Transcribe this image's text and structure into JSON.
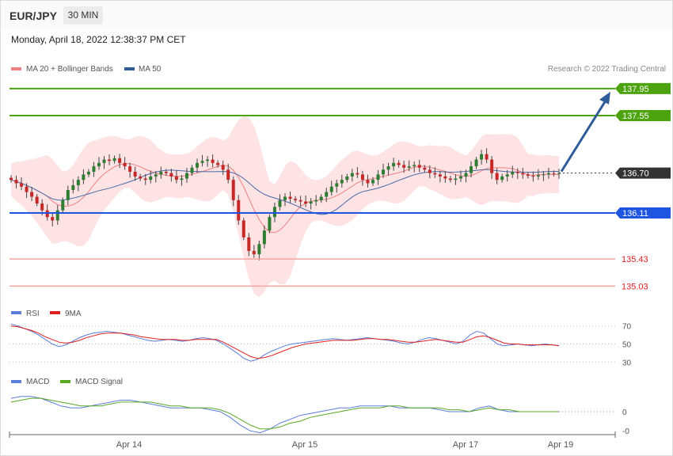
{
  "header": {
    "symbol": "EUR/JPY",
    "timeframe": "30 MIN",
    "datetime": "Monday, April 18, 2022 12:38:37 PM CET"
  },
  "legend": {
    "bb_label": "MA 20 + Bollinger Bands",
    "ma50_label": "MA 50",
    "credit": "Research © 2022 Trading Central",
    "rsi_label": "RSI",
    "rsi_ma_label": "9MA",
    "macd_label": "MACD",
    "signal_label": "MACD Signal"
  },
  "colors": {
    "resistance": "#4ca30d",
    "support": "#1e55e0",
    "price": "#333333",
    "target_red": "#f4a3a3",
    "arrow": "#2f5c98",
    "bb_fill": "#fde0e0",
    "ma20": "#f08080",
    "ma50": "#4a6aa8",
    "candle_up": "#2e7d32",
    "candle_down": "#c62828",
    "rsi": "#5b7ddb",
    "rsi_ma": "#e02020",
    "macd": "#5b7ddb",
    "signal": "#59a824"
  },
  "chart_data": [
    {
      "type": "candlestick",
      "title": "EUR/JPY",
      "x_ticks": [
        "Apr 14",
        "Apr 15",
        "Apr 17",
        "Apr 19"
      ],
      "ylim": [
        134.8,
        138.1
      ],
      "levels": [
        {
          "value": 137.95,
          "label": "137.95",
          "kind": "resistance"
        },
        {
          "value": 137.55,
          "label": "137.55",
          "kind": "resistance"
        },
        {
          "value": 136.7,
          "label": "136.70",
          "kind": "price"
        },
        {
          "value": 136.11,
          "label": "136.11",
          "kind": "support"
        },
        {
          "value": 135.43,
          "label": "135.43",
          "kind": "target"
        },
        {
          "value": 135.03,
          "label": "135.03",
          "kind": "target"
        }
      ],
      "projection": {
        "from": 136.7,
        "to": 137.95
      },
      "close": [
        136.6,
        136.55,
        136.5,
        136.42,
        136.35,
        136.25,
        136.15,
        136.05,
        136.0,
        136.15,
        136.3,
        136.45,
        136.52,
        136.6,
        136.68,
        136.72,
        136.8,
        136.85,
        136.9,
        136.88,
        136.92,
        136.85,
        136.8,
        136.72,
        136.65,
        136.62,
        136.6,
        136.65,
        136.68,
        136.72,
        136.7,
        136.65,
        136.6,
        136.62,
        136.7,
        136.78,
        136.85,
        136.88,
        136.9,
        136.85,
        136.82,
        136.75,
        136.6,
        136.3,
        136.0,
        135.75,
        135.55,
        135.5,
        135.65,
        135.85,
        136.05,
        136.2,
        136.3,
        136.35,
        136.32,
        136.3,
        136.28,
        136.25,
        136.28,
        136.3,
        136.35,
        136.42,
        136.5,
        136.55,
        136.6,
        136.65,
        136.7,
        136.68,
        136.6,
        136.55,
        136.6,
        136.68,
        136.75,
        136.8,
        136.85,
        136.82,
        136.78,
        136.8,
        136.82,
        136.78,
        136.75,
        136.7,
        136.68,
        136.65,
        136.62,
        136.6,
        136.62,
        136.65,
        136.7,
        136.8,
        136.9,
        136.98,
        136.9,
        136.7,
        136.6,
        136.65,
        136.68,
        136.72,
        136.7,
        136.68,
        136.66,
        136.65,
        136.67,
        136.68,
        136.7,
        136.69,
        136.7
      ]
    },
    {
      "type": "line",
      "title": "RSI",
      "ylim": [
        25,
        75
      ],
      "y_ticks": [
        70,
        50,
        30
      ],
      "series": [
        {
          "name": "RSI",
          "values": [
            72,
            70,
            67,
            64,
            60,
            55,
            50,
            47,
            49,
            53,
            57,
            60,
            62,
            63,
            64,
            63,
            62,
            60,
            58,
            56,
            54,
            53,
            54,
            55,
            54,
            53,
            54,
            56,
            57,
            56,
            54,
            50,
            45,
            40,
            34,
            31,
            33,
            38,
            42,
            45,
            48,
            50,
            51,
            52,
            53,
            54,
            55,
            56,
            55,
            54,
            55,
            56,
            57,
            56,
            55,
            54,
            53,
            51,
            50,
            52,
            55,
            57,
            56,
            54,
            52,
            50,
            53,
            60,
            64,
            62,
            56,
            50,
            48,
            49,
            50,
            49,
            48,
            49,
            50,
            49,
            48
          ]
        },
        {
          "name": "9MA",
          "values": [
            70,
            69,
            67,
            65,
            62,
            58,
            55,
            52,
            51,
            52,
            54,
            57,
            59,
            61,
            62,
            62,
            62,
            61,
            60,
            58,
            57,
            56,
            55,
            55,
            55,
            54,
            54,
            55,
            55,
            55,
            55,
            52,
            48,
            44,
            40,
            36,
            34,
            35,
            37,
            40,
            43,
            46,
            48,
            50,
            51,
            52,
            53,
            54,
            54,
            54,
            54,
            55,
            56,
            56,
            55,
            55,
            54,
            53,
            52,
            52,
            53,
            54,
            55,
            54,
            53,
            52,
            52,
            55,
            58,
            59,
            57,
            54,
            51,
            50,
            50,
            49,
            49,
            49,
            49,
            49,
            48
          ]
        }
      ]
    },
    {
      "type": "line",
      "title": "MACD",
      "ylim": [
        -0.12,
        0.12
      ],
      "y_ticks": [
        "0",
        "-0"
      ],
      "series": [
        {
          "name": "MACD",
          "values": [
            0.07,
            0.08,
            0.08,
            0.07,
            0.05,
            0.03,
            0.02,
            0.02,
            0.03,
            0.04,
            0.05,
            0.06,
            0.06,
            0.05,
            0.04,
            0.03,
            0.02,
            0.02,
            0.02,
            0.02,
            0.01,
            0.0,
            -0.03,
            -0.07,
            -0.1,
            -0.11,
            -0.09,
            -0.06,
            -0.04,
            -0.02,
            -0.01,
            0.0,
            0.01,
            0.02,
            0.02,
            0.03,
            0.03,
            0.03,
            0.03,
            0.02,
            0.02,
            0.02,
            0.02,
            0.01,
            0.0,
            0.0,
            0.0,
            0.02,
            0.03,
            0.01,
            0.0,
            0.0,
            0.0,
            0.0,
            0.0,
            0.0
          ]
        },
        {
          "name": "MACD Signal",
          "values": [
            0.05,
            0.06,
            0.07,
            0.07,
            0.06,
            0.05,
            0.04,
            0.03,
            0.03,
            0.03,
            0.04,
            0.05,
            0.05,
            0.05,
            0.05,
            0.04,
            0.03,
            0.03,
            0.02,
            0.02,
            0.02,
            0.01,
            -0.01,
            -0.04,
            -0.07,
            -0.09,
            -0.09,
            -0.08,
            -0.06,
            -0.05,
            -0.03,
            -0.02,
            -0.01,
            0.0,
            0.01,
            0.02,
            0.02,
            0.02,
            0.03,
            0.03,
            0.02,
            0.02,
            0.02,
            0.02,
            0.01,
            0.01,
            0.0,
            0.01,
            0.02,
            0.01,
            0.01,
            0.0,
            0.0,
            0.0,
            0.0,
            0.0
          ]
        }
      ]
    }
  ]
}
